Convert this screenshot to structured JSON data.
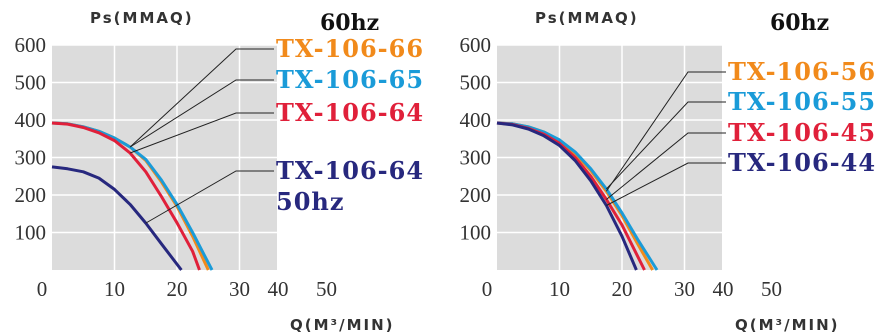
{
  "chart_data": [
    {
      "type": "line",
      "y_axis_label": "Ps(MMAQ)",
      "x_axis_label": "Q(M³/MIN)",
      "frequency_label": "60hz",
      "xlim": [
        0,
        50
      ],
      "ylim": [
        0,
        600
      ],
      "x_ticks": [
        "0",
        "10",
        "20",
        "30",
        "40",
        "50"
      ],
      "y_ticks": [
        "600",
        "500",
        "400",
        "300",
        "200",
        "100"
      ],
      "grid": true,
      "series": [
        {
          "name": "TX-106-66",
          "color": "#f18a1b",
          "x": [
            0,
            2.5,
            5,
            7.5,
            10,
            12.5,
            15,
            17.5,
            20,
            22.5,
            25
          ],
          "y": [
            392,
            390,
            382,
            370,
            352,
            328,
            292,
            235,
            170,
            90,
            0
          ]
        },
        {
          "name": "TX-106-65",
          "color": "#1a9bd8",
          "x": [
            0,
            2.5,
            5,
            7.5,
            10,
            12.5,
            15,
            17.5,
            20,
            22.5,
            25.6
          ],
          "y": [
            392,
            390,
            382,
            370,
            352,
            328,
            295,
            240,
            175,
            100,
            0
          ]
        },
        {
          "name": "TX-106-64",
          "color": "#e0203a",
          "x": [
            0,
            2.5,
            5,
            7.5,
            10,
            12.5,
            15,
            17.5,
            20,
            22.5,
            23.6
          ],
          "y": [
            392,
            389,
            380,
            366,
            345,
            312,
            262,
            196,
            126,
            50,
            0
          ]
        },
        {
          "name": "TX-106-64",
          "name2": "50hz",
          "color": "#27287e",
          "x": [
            0,
            2.5,
            5,
            7.5,
            10,
            12.5,
            15,
            17.5,
            20.7
          ],
          "y": [
            275,
            270,
            262,
            245,
            215,
            175,
            125,
            70,
            0
          ]
        }
      ]
    },
    {
      "type": "line",
      "y_axis_label": "Ps(MMAQ)",
      "x_axis_label": "Q(M³/MIN)",
      "frequency_label": "60hz",
      "xlim": [
        0,
        50
      ],
      "ylim": [
        0,
        600
      ],
      "x_ticks": [
        "0",
        "10",
        "20",
        "30",
        "40",
        "50"
      ],
      "y_ticks": [
        "600",
        "500",
        "400",
        "300",
        "200",
        "100"
      ],
      "grid": true,
      "series": [
        {
          "name": "TX-106-56",
          "color": "#f18a1b",
          "x": [
            0,
            2.5,
            5,
            7.5,
            10,
            12.5,
            15,
            17.5,
            20,
            22.5,
            24.9
          ],
          "y": [
            392,
            390,
            382,
            368,
            345,
            310,
            265,
            210,
            145,
            70,
            0
          ]
        },
        {
          "name": "TX-106-55",
          "color": "#1a9bd8",
          "x": [
            0,
            2.5,
            5,
            7.5,
            10,
            12.5,
            15,
            17.5,
            20,
            22.5,
            25.6
          ],
          "y": [
            392,
            390,
            382,
            368,
            347,
            315,
            270,
            216,
            152,
            82,
            0
          ]
        },
        {
          "name": "TX-106-45",
          "color": "#e0203a",
          "x": [
            0,
            2.5,
            5,
            7.5,
            10,
            12.5,
            15,
            17.5,
            20,
            23.6
          ],
          "y": [
            392,
            388,
            378,
            362,
            338,
            300,
            250,
            188,
            120,
            0
          ]
        },
        {
          "name": "TX-106-44",
          "color": "#27287e",
          "x": [
            0,
            2.5,
            5,
            7.5,
            10,
            12.5,
            15,
            17.5,
            20,
            22.3
          ],
          "y": [
            392,
            387,
            376,
            358,
            332,
            292,
            238,
            172,
            90,
            0
          ]
        }
      ]
    }
  ]
}
